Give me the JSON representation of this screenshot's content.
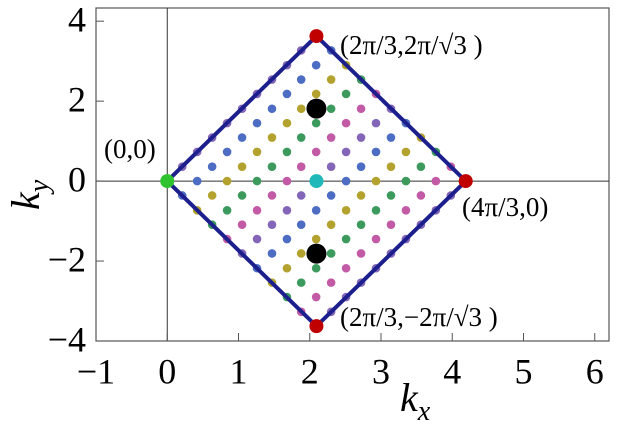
{
  "chart_data": {
    "type": "scatter",
    "x_label": "k",
    "x_label_sub": "x",
    "y_label": "k",
    "y_label_sub": "y",
    "xlim": [
      -1,
      6.2
    ],
    "ylim": [
      -4,
      4.33
    ],
    "xticks": [
      {
        "value": -1,
        "label": "−1"
      },
      0,
      1,
      2,
      3,
      4,
      5,
      6
    ],
    "yticks": [
      {
        "value": -4,
        "label": "−4"
      },
      {
        "value": -2,
        "label": "−2"
      },
      0,
      2,
      4
    ],
    "axes": true,
    "outline": {
      "color": "#1c1f8c",
      "x": [
        0,
        2.094,
        4.189,
        2.094,
        0
      ],
      "y": [
        0,
        3.628,
        0,
        -3.628,
        0
      ]
    },
    "series": [
      {
        "color": "#8466b8",
        "x": [
          0,
          0.21,
          0.42,
          0.63,
          0.84,
          1.05,
          1.26,
          1.47,
          1.68,
          1.88,
          2.09,
          1.05,
          1.26,
          1.47,
          1.68,
          1.88,
          2.09,
          2.3,
          2.51,
          2.72,
          2.93,
          3.14,
          2.09,
          2.3,
          2.51,
          2.72,
          2.93,
          3.14,
          3.35,
          3.56,
          3.77,
          3.98,
          4.19
        ],
        "y": [
          0,
          0.36,
          0.73,
          1.09,
          1.45,
          1.81,
          2.18,
          2.54,
          2.9,
          3.27,
          3.63,
          -1.81,
          -1.45,
          -1.09,
          -0.73,
          -0.36,
          0,
          0.36,
          0.73,
          1.09,
          1.45,
          1.81,
          -3.63,
          -3.27,
          -2.9,
          -2.54,
          -2.18,
          -1.81,
          -1.45,
          -1.09,
          -0.73,
          -0.36,
          0
        ]
      },
      {
        "color": "#4d6cc4",
        "x": [
          0.21,
          0.42,
          0.63,
          0.84,
          1.05,
          1.26,
          1.47,
          1.68,
          1.88,
          2.09,
          2.3,
          1.26,
          1.47,
          1.68,
          1.88,
          2.09,
          2.3,
          2.51,
          2.72,
          2.93,
          3.14,
          3.35
        ],
        "y": [
          -0.36,
          0,
          0.36,
          0.73,
          1.09,
          1.45,
          1.81,
          2.18,
          2.54,
          2.9,
          3.27,
          -2.18,
          -1.81,
          -1.45,
          -1.09,
          -0.73,
          -0.36,
          0,
          0.36,
          0.73,
          1.09,
          1.45
        ]
      },
      {
        "color": "#b3a22e",
        "x": [
          0.42,
          0.63,
          0.84,
          1.05,
          1.26,
          1.47,
          1.68,
          1.88,
          2.09,
          2.3,
          2.51,
          1.47,
          1.68,
          1.88,
          2.09,
          2.3,
          2.51,
          2.72,
          2.93,
          3.14,
          3.35,
          3.56
        ],
        "y": [
          -0.73,
          -0.36,
          0,
          0.36,
          0.73,
          1.09,
          1.45,
          1.81,
          2.18,
          2.54,
          2.9,
          -2.54,
          -2.18,
          -1.81,
          -1.45,
          -1.09,
          -0.73,
          -0.36,
          0,
          0.36,
          0.73,
          1.09
        ]
      },
      {
        "color": "#3b9a5c",
        "x": [
          0.63,
          0.84,
          1.05,
          1.26,
          1.47,
          1.68,
          1.88,
          2.09,
          2.3,
          2.51,
          2.72,
          1.68,
          1.88,
          2.09,
          2.3,
          2.51,
          2.72,
          2.93,
          3.14,
          3.35,
          3.56,
          3.77
        ],
        "y": [
          -1.09,
          -0.73,
          -0.36,
          0,
          0.36,
          0.73,
          1.09,
          1.45,
          1.81,
          2.18,
          2.54,
          -2.9,
          -2.54,
          -2.18,
          -1.81,
          -1.45,
          -1.09,
          -0.73,
          -0.36,
          0,
          0.36,
          0.73
        ]
      },
      {
        "color": "#c25aa6",
        "x": [
          0.84,
          1.05,
          1.26,
          1.47,
          1.68,
          1.88,
          2.09,
          2.3,
          2.51,
          2.72,
          2.93,
          1.88,
          2.09,
          2.3,
          2.51,
          2.72,
          2.93,
          3.14,
          3.35,
          3.56,
          3.77,
          3.98
        ],
        "y": [
          -1.45,
          -1.09,
          -0.73,
          -0.36,
          0,
          0.36,
          0.73,
          1.09,
          1.45,
          1.81,
          2.18,
          -3.27,
          -2.9,
          -2.54,
          -2.18,
          -1.81,
          -1.45,
          -1.09,
          -0.73,
          -0.36,
          0,
          0.36
        ]
      }
    ],
    "special_points": [
      {
        "color": "#c00000",
        "x": [
          2.094,
          4.189,
          2.094
        ],
        "y": [
          3.628,
          0,
          -3.628
        ]
      },
      {
        "color": "#2fc42f",
        "x": [
          0
        ],
        "y": [
          0
        ]
      },
      {
        "color": "#20b8b8",
        "x": [
          2.094
        ],
        "y": [
          0
        ]
      },
      {
        "color": "#000000",
        "x": [
          2.094,
          2.094
        ],
        "y": [
          1.814,
          -1.814
        ],
        "large": true
      }
    ],
    "annotations": [
      "(0,0)",
      "(2π/3,2π/√3 )",
      "(4π/3,0)",
      "(2π/3,−2π/√3 )"
    ]
  }
}
